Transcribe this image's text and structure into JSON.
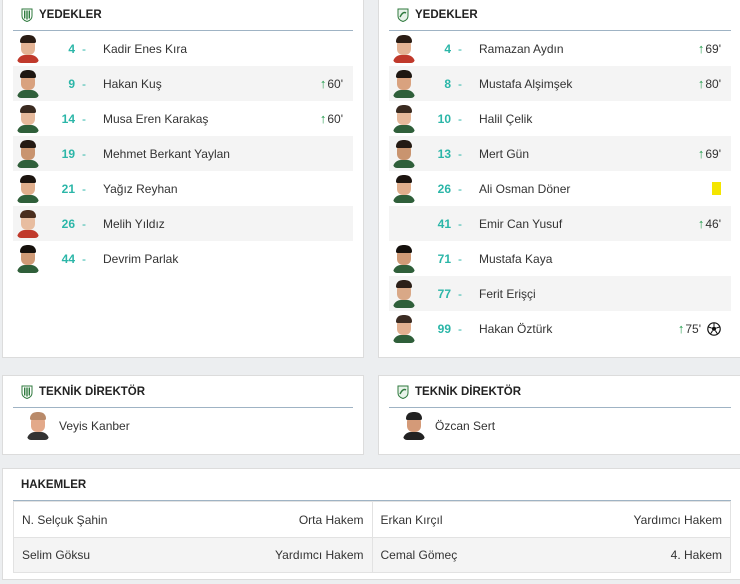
{
  "home_subs": {
    "title": "YEDEKLER",
    "players": [
      {
        "number": "4",
        "name": "Kadir Enes Kıra",
        "sub_minute": ""
      },
      {
        "number": "9",
        "name": "Hakan Kuş",
        "sub_minute": "60'"
      },
      {
        "number": "14",
        "name": "Musa Eren Karakaş",
        "sub_minute": "60'"
      },
      {
        "number": "19",
        "name": "Mehmet Berkant Yaylan",
        "sub_minute": ""
      },
      {
        "number": "21",
        "name": "Yağız Reyhan",
        "sub_minute": ""
      },
      {
        "number": "26",
        "name": "Melih Yıldız",
        "sub_minute": ""
      },
      {
        "number": "44",
        "name": "Devrim Parlak",
        "sub_minute": ""
      }
    ]
  },
  "away_subs": {
    "title": "YEDEKLER",
    "players": [
      {
        "number": "4",
        "name": "Ramazan Aydın",
        "sub_minute": "69'"
      },
      {
        "number": "8",
        "name": "Mustafa Alşimşek",
        "sub_minute": "80'"
      },
      {
        "number": "10",
        "name": "Halil Çelik",
        "sub_minute": ""
      },
      {
        "number": "13",
        "name": "Mert Gün",
        "sub_minute": "69'"
      },
      {
        "number": "26",
        "name": "Ali Osman Döner",
        "sub_minute": "",
        "yellow_card": true
      },
      {
        "number": "41",
        "name": "Emir Can Yusuf",
        "sub_minute": "46'"
      },
      {
        "number": "71",
        "name": "Mustafa Kaya",
        "sub_minute": ""
      },
      {
        "number": "77",
        "name": "Ferit Erişçi",
        "sub_minute": ""
      },
      {
        "number": "99",
        "name": "Hakan Öztürk",
        "sub_minute": "75'",
        "goal": true
      }
    ]
  },
  "home_coach": {
    "title": "TEKNİK DİREKTÖR",
    "name": "Veyis Kanber"
  },
  "away_coach": {
    "title": "TEKNİK DİREKTÖR",
    "name": "Özcan Sert"
  },
  "referees": {
    "title": "HAKEMLER",
    "rows": [
      [
        {
          "name": "N. Selçuk Şahin",
          "role": "Orta Hakem"
        },
        {
          "name": "Erkan Kırçıl",
          "role": "Yardımcı Hakem"
        }
      ],
      [
        {
          "name": "Selim Göksu",
          "role": "Yardımcı Hakem"
        },
        {
          "name": "Cemal Gömeç",
          "role": "4. Hakem"
        }
      ]
    ]
  },
  "dash": "-",
  "colors": {
    "accent": "#2bb6a8",
    "sub_arrow": "#1f9a4a",
    "yellow_card": "#f4e500"
  }
}
